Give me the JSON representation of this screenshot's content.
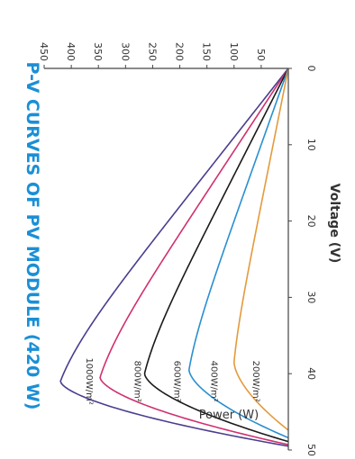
{
  "colors": {
    "title": "#1a8fd6",
    "axis": "#444444",
    "text": "#333333"
  },
  "chart_data": {
    "type": "line",
    "orientation": "rotated-90-clockwise",
    "title": "P-V CURVES OF PV MODULE (420 W)",
    "xlabel": "Voltage (V)",
    "ylabel": "Power (W)",
    "xlim": [
      0,
      50
    ],
    "ylim": [
      0,
      450
    ],
    "x_ticks": [
      0,
      10,
      20,
      30,
      40,
      50
    ],
    "x_tick_labels": [
      "0",
      "10",
      "20",
      "30",
      "40",
      "50"
    ],
    "y_ticks": [
      50,
      100,
      150,
      200,
      250,
      300,
      350,
      400,
      450
    ],
    "y_tick_labels": [
      "50",
      "100",
      "150",
      "200",
      "250",
      "300",
      "350",
      "400",
      "450"
    ],
    "grid": false,
    "series": [
      {
        "name": "1000W/m²",
        "color": "#4b3d8f",
        "vmp": 41.0,
        "pmax": 420,
        "voc": 49.5,
        "label_pos": [
          41,
          372
        ]
      },
      {
        "name": "800W/m²",
        "color": "#d0306e",
        "vmp": 40.5,
        "pmax": 347,
        "voc": 49.3,
        "label_pos": [
          41,
          283
        ]
      },
      {
        "name": "600W/m²",
        "color": "#1a1a1a",
        "vmp": 40.0,
        "pmax": 265,
        "voc": 48.9,
        "label_pos": [
          41,
          210
        ]
      },
      {
        "name": "400W/m²",
        "color": "#2a8fd0",
        "vmp": 39.5,
        "pmax": 183,
        "voc": 48.4,
        "label_pos": [
          41,
          142
        ]
      },
      {
        "name": "200W/m²",
        "color": "#e39a3c",
        "vmp": 38.5,
        "pmax": 100,
        "voc": 47.4,
        "label_pos": [
          41,
          65
        ]
      }
    ]
  }
}
